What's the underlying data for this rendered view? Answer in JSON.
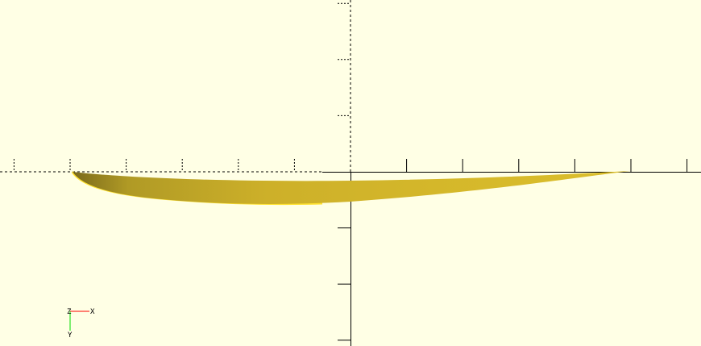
{
  "viewport": {
    "background": "#ffffe5",
    "model_color": "#d8b928",
    "axis_color": "#000000"
  },
  "gizmo": {
    "x_label": "X",
    "y_label": "Y",
    "z_label": "Z",
    "x_color": "#ff0000",
    "y_color": "#00dd00"
  }
}
